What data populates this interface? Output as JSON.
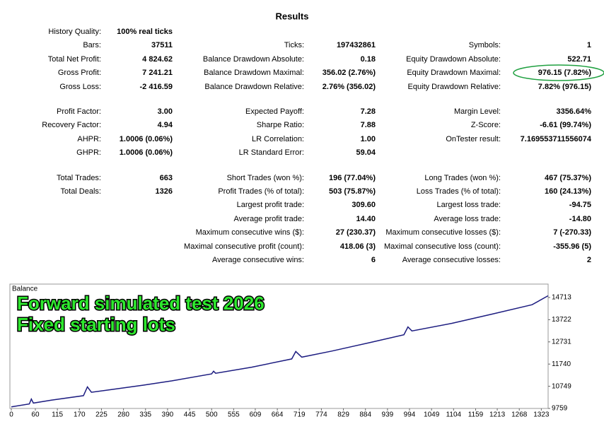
{
  "report": {
    "title": "Results",
    "rows": [
      [
        [
          "History Quality:",
          "100% real ticks"
        ],
        null,
        null
      ],
      [
        [
          "Bars:",
          "37511"
        ],
        [
          "Ticks:",
          "197432861"
        ],
        [
          "Symbols:",
          "1"
        ]
      ],
      [
        [
          "Total Net Profit:",
          "4 824.62"
        ],
        [
          "Balance Drawdown Absolute:",
          "0.18"
        ],
        [
          "Equity Drawdown Absolute:",
          "522.71"
        ]
      ],
      [
        [
          "Gross Profit:",
          "7 241.21"
        ],
        [
          "Balance Drawdown Maximal:",
          "356.02 (2.76%)"
        ],
        [
          "Equity Drawdown Maximal:",
          "976.15 (7.82%)"
        ]
      ],
      [
        [
          "Gross Loss:",
          "-2 416.59"
        ],
        [
          "Balance Drawdown Relative:",
          "2.76% (356.02)"
        ],
        [
          "Equity Drawdown Relative:",
          "7.82% (976.15)"
        ]
      ],
      [
        [
          "Profit Factor:",
          "3.00"
        ],
        [
          "Expected Payoff:",
          "7.28"
        ],
        [
          "Margin Level:",
          "3356.64%"
        ]
      ],
      [
        [
          "Recovery Factor:",
          "4.94"
        ],
        [
          "Sharpe Ratio:",
          "7.88"
        ],
        [
          "Z-Score:",
          "-6.61 (99.74%)"
        ]
      ],
      [
        [
          "AHPR:",
          "1.0006 (0.06%)"
        ],
        [
          "LR Correlation:",
          "1.00"
        ],
        [
          "OnTester result:",
          "7.169553711556074"
        ]
      ],
      [
        [
          "GHPR:",
          "1.0006 (0.06%)"
        ],
        [
          "LR Standard Error:",
          "59.04"
        ],
        null
      ],
      [
        [
          "Total Trades:",
          "663"
        ],
        [
          "Short Trades (won %):",
          "196 (77.04%)"
        ],
        [
          "Long Trades (won %):",
          "467 (75.37%)"
        ]
      ],
      [
        [
          "Total Deals:",
          "1326"
        ],
        [
          "Profit Trades (% of total):",
          "503 (75.87%)"
        ],
        [
          "Loss Trades (% of total):",
          "160 (24.13%)"
        ]
      ],
      [
        null,
        [
          "Largest profit trade:",
          "309.60"
        ],
        [
          "Largest loss trade:",
          "-94.75"
        ]
      ],
      [
        null,
        [
          "Average profit trade:",
          "14.40"
        ],
        [
          "Average loss trade:",
          "-14.80"
        ]
      ],
      [
        null,
        [
          "Maximum consecutive wins ($):",
          "27 (230.37)"
        ],
        [
          "Maximum consecutive losses ($):",
          "7 (-270.33)"
        ]
      ],
      [
        null,
        [
          "Maximal consecutive profit (count):",
          "418.06 (3)"
        ],
        [
          "Maximal consecutive loss (count):",
          "-355.96 (5)"
        ]
      ],
      [
        null,
        [
          "Average consecutive wins:",
          "6"
        ],
        [
          "Average consecutive losses:",
          "2"
        ]
      ]
    ]
  },
  "chart_data": {
    "type": "line",
    "label": "Balance",
    "annotations": [
      "Forward simulated test 2026",
      "Fixed starting lots"
    ],
    "color": "#1c1c80",
    "x": [
      0,
      45,
      50,
      55,
      100,
      180,
      190,
      200,
      250,
      330,
      400,
      500,
      505,
      510,
      600,
      700,
      710,
      725,
      800,
      900,
      980,
      990,
      1000,
      1100,
      1200,
      1300,
      1340
    ],
    "values": [
      9830,
      9960,
      10180,
      10000,
      10130,
      10330,
      10720,
      10480,
      10600,
      10800,
      10990,
      11300,
      11420,
      11330,
      11600,
      11970,
      12300,
      12050,
      12320,
      12720,
      13050,
      13400,
      13220,
      13560,
      13970,
      14390,
      14790
    ],
    "xlim": [
      0,
      1340
    ],
    "ylim": [
      9759,
      15311
    ],
    "xticks": [
      0,
      60,
      115,
      170,
      225,
      280,
      335,
      390,
      445,
      500,
      555,
      609,
      664,
      719,
      774,
      829,
      884,
      939,
      994,
      1049,
      1104,
      1159,
      1213,
      1268,
      1323
    ],
    "yticks": [
      9759,
      10749,
      11740,
      12731,
      13722,
      14713
    ]
  }
}
